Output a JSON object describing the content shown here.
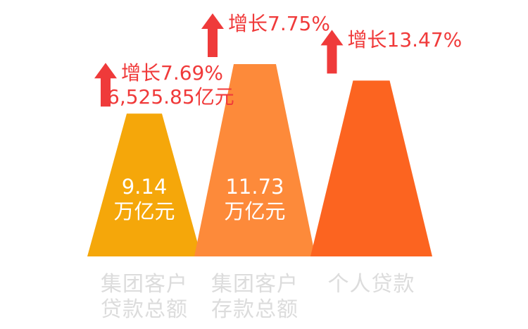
{
  "chart_data": {
    "type": "bar",
    "style": "triangle-pyramid",
    "categories": [
      [
        "集团客户",
        "贷款总额"
      ],
      [
        "集团客户",
        "存款总额"
      ],
      [
        "个人贷款"
      ]
    ],
    "series": [
      {
        "values": [
          9.14,
          11.73,
          null
        ],
        "value_labels": [
          "9.14",
          "11.73",
          ""
        ],
        "unit": "万亿元"
      }
    ],
    "growth": [
      {
        "rate": "增长7.69%",
        "extra": "6,525.85亿元"
      },
      {
        "rate": "增长7.75%",
        "extra": ""
      },
      {
        "rate": "增长13.47%",
        "extra": ""
      }
    ],
    "colors": [
      "#f5a70a",
      "#fd8a3a",
      "#fc6420"
    ],
    "arrow_color": "#ef3a3a",
    "relative_heights": [
      0.52,
      0.7,
      0.64
    ]
  }
}
